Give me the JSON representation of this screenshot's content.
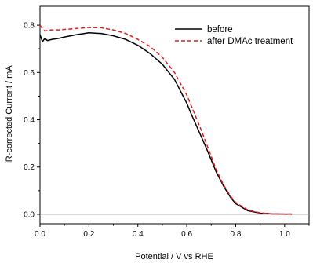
{
  "chart_data": {
    "type": "line",
    "title": "",
    "xlabel": "Potential / V vs RHE",
    "ylabel": "iR-corrected Current / mA",
    "xlim": [
      0.0,
      1.1
    ],
    "ylim": [
      -0.04,
      0.88
    ],
    "xticks": [
      "0.0",
      "0.2",
      "0.4",
      "0.6",
      "0.8",
      "1.0"
    ],
    "xtick_values": [
      0.0,
      0.2,
      0.4,
      0.6,
      0.8,
      1.0
    ],
    "yticks": [
      "0.0",
      "0.2",
      "0.4",
      "0.6",
      "0.8"
    ],
    "ytick_values": [
      0.0,
      0.2,
      0.4,
      0.6,
      0.8
    ],
    "grid": false,
    "baseline": 0.0,
    "legend_position": "top-right",
    "series": [
      {
        "name": "before",
        "color": "#000000",
        "dash": "solid",
        "x": [
          0.0,
          0.01,
          0.02,
          0.03,
          0.05,
          0.08,
          0.1,
          0.15,
          0.2,
          0.25,
          0.3,
          0.35,
          0.4,
          0.45,
          0.5,
          0.55,
          0.6,
          0.62,
          0.65,
          0.68,
          0.7,
          0.72,
          0.75,
          0.78,
          0.8,
          0.85,
          0.9,
          0.95,
          1.0,
          1.03
        ],
        "y": [
          0.76,
          0.73,
          0.745,
          0.735,
          0.74,
          0.745,
          0.75,
          0.76,
          0.768,
          0.765,
          0.755,
          0.74,
          0.715,
          0.68,
          0.635,
          0.57,
          0.47,
          0.42,
          0.35,
          0.28,
          0.23,
          0.18,
          0.12,
          0.07,
          0.045,
          0.015,
          0.005,
          0.002,
          0.001,
          0.001
        ]
      },
      {
        "name": "after DMAc treatment",
        "color": "#e41a1c",
        "dash": "dashed",
        "x": [
          0.0,
          0.01,
          0.02,
          0.03,
          0.05,
          0.08,
          0.1,
          0.15,
          0.2,
          0.25,
          0.3,
          0.35,
          0.4,
          0.45,
          0.5,
          0.55,
          0.6,
          0.62,
          0.65,
          0.68,
          0.7,
          0.72,
          0.75,
          0.78,
          0.8,
          0.85,
          0.9,
          0.95,
          1.0,
          1.03
        ],
        "y": [
          0.8,
          0.785,
          0.775,
          0.778,
          0.78,
          0.78,
          0.782,
          0.786,
          0.79,
          0.789,
          0.78,
          0.765,
          0.74,
          0.71,
          0.665,
          0.6,
          0.505,
          0.455,
          0.38,
          0.3,
          0.245,
          0.19,
          0.125,
          0.075,
          0.05,
          0.018,
          0.006,
          0.002,
          0.001,
          0.001
        ]
      }
    ]
  }
}
